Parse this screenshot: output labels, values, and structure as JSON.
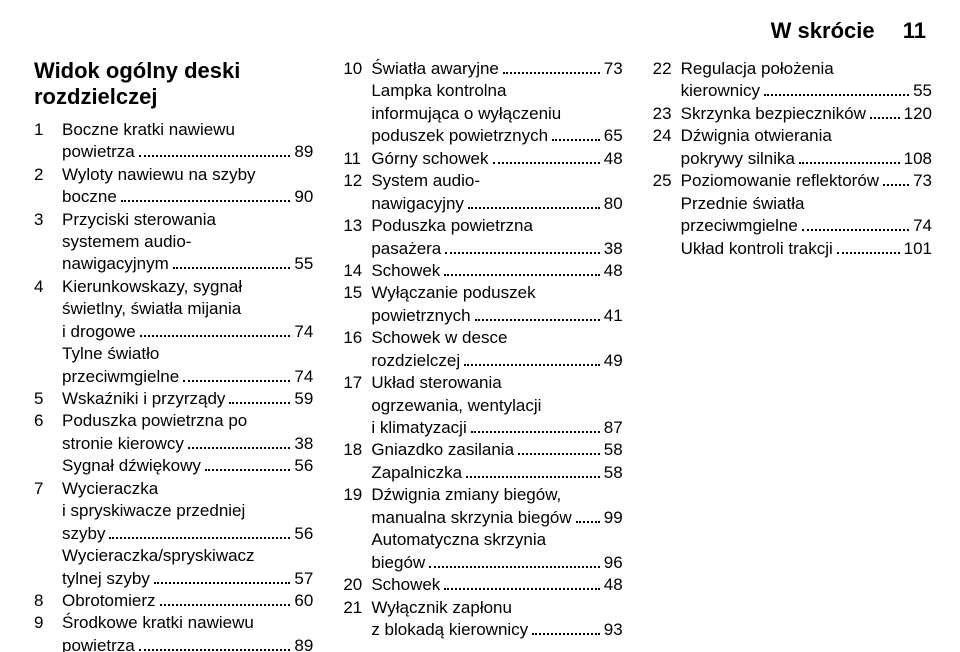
{
  "header": {
    "section": "W skrócie",
    "page": "11"
  },
  "col1": {
    "title_l1": "Widok ogólny deski",
    "title_l2": "rozdzielczej",
    "items": [
      {
        "num": "1",
        "lines": [
          "Boczne kratki nawiewu"
        ],
        "last": "powietrza",
        "pg": "89"
      },
      {
        "num": "2",
        "lines": [
          "Wyloty nawiewu na szyby"
        ],
        "last": "boczne",
        "pg": "90"
      },
      {
        "num": "3",
        "lines": [
          "Przyciski sterowania",
          "systemem audio-"
        ],
        "last": "nawigacyjnym",
        "pg": "55"
      },
      {
        "num": "4",
        "lines": [
          "Kierunkowskazy, sygnał",
          "świetlny, światła mijania"
        ],
        "last": "i drogowe",
        "pg": "74",
        "extra": [
          {
            "lines": [
              "Tylne światło"
            ],
            "last": "przeciwmgielne",
            "pg": "74"
          }
        ]
      },
      {
        "num": "5",
        "lines": [],
        "last": "Wskaźniki i przyrządy",
        "pg": "59"
      },
      {
        "num": "6",
        "lines": [
          "Poduszka powietrzna po"
        ],
        "last": "stronie kierowcy",
        "pg": "38",
        "extra": [
          {
            "lines": [],
            "last": "Sygnał dźwiękowy",
            "pg": "56"
          }
        ]
      },
      {
        "num": "7",
        "lines": [
          "Wycieraczka",
          "i spryskiwacze przedniej"
        ],
        "last": "szyby",
        "pg": "56",
        "extra": [
          {
            "lines": [
              "Wycieraczka/spryskiwacz"
            ],
            "last": "tylnej szyby",
            "pg": "57"
          }
        ]
      },
      {
        "num": "8",
        "lines": [],
        "last": "Obrotomierz",
        "pg": "60"
      },
      {
        "num": "9",
        "lines": [
          "Środkowe kratki nawiewu"
        ],
        "last": "powietrza",
        "pg": "89"
      }
    ]
  },
  "col2": {
    "items": [
      {
        "num": "10",
        "lines": [],
        "last": "Światła awaryjne",
        "pg": "73",
        "extra": [
          {
            "lines": [
              "Lampka kontrolna",
              "informująca o wyłączeniu"
            ],
            "last": "poduszek powietrznych",
            "pg": "65"
          }
        ]
      },
      {
        "num": "11",
        "lines": [],
        "last": "Górny schowek",
        "pg": "48"
      },
      {
        "num": "12",
        "lines": [
          "System audio-"
        ],
        "last": "nawigacyjny",
        "pg": "80"
      },
      {
        "num": "13",
        "lines": [
          "Poduszka powietrzna"
        ],
        "last": "pasażera",
        "pg": "38"
      },
      {
        "num": "14",
        "lines": [],
        "last": "Schowek",
        "pg": "48"
      },
      {
        "num": "15",
        "lines": [
          "Wyłączanie poduszek"
        ],
        "last": "powietrznych",
        "pg": "41"
      },
      {
        "num": "16",
        "lines": [
          "Schowek w desce"
        ],
        "last": "rozdzielczej",
        "pg": "49"
      },
      {
        "num": "17",
        "lines": [
          "Układ sterowania",
          "ogrzewania, wentylacji"
        ],
        "last": "i klimatyzacji",
        "pg": "87"
      },
      {
        "num": "18",
        "lines": [],
        "last": "Gniazdko zasilania",
        "pg": "58",
        "extra": [
          {
            "lines": [],
            "last": "Zapalniczka",
            "pg": "58"
          }
        ]
      },
      {
        "num": "19",
        "lines": [
          "Dźwignia zmiany biegów,"
        ],
        "last": "manualna skrzynia biegów",
        "pg": "99",
        "extra": [
          {
            "lines": [
              "Automatyczna skrzynia"
            ],
            "last": "biegów",
            "pg": "96"
          }
        ]
      },
      {
        "num": "20",
        "lines": [],
        "last": "Schowek",
        "pg": "48"
      },
      {
        "num": "21",
        "lines": [
          "Wyłącznik zapłonu"
        ],
        "last": "z blokadą kierownicy",
        "pg": "93"
      }
    ]
  },
  "col3": {
    "items": [
      {
        "num": "22",
        "lines": [
          "Regulacja położenia"
        ],
        "last": "kierownicy",
        "pg": "55"
      },
      {
        "num": "23",
        "lines": [],
        "last": "Skrzynka bezpieczników",
        "pg": "120"
      },
      {
        "num": "24",
        "lines": [
          "Dźwignia otwierania"
        ],
        "last": "pokrywy silnika",
        "pg": "108"
      },
      {
        "num": "25",
        "lines": [],
        "last": "Poziomowanie reflektorów",
        "pg": "73",
        "extra": [
          {
            "lines": [
              "Przednie światła"
            ],
            "last": "przeciwmgielne",
            "pg": "74"
          },
          {
            "lines": [],
            "last": "Układ kontroli trakcji",
            "pg": "101"
          }
        ]
      }
    ]
  }
}
